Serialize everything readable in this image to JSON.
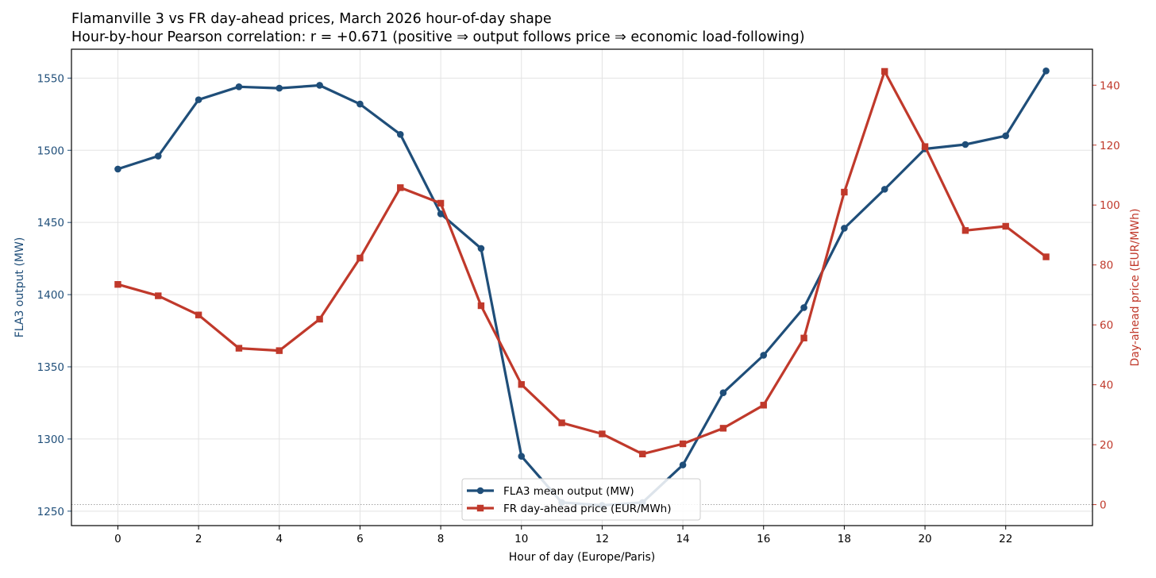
{
  "chart_data": {
    "type": "line",
    "title": "Flamanville 3 vs FR day-ahead prices, March 2026 hour-of-day shape",
    "subtitle": "Hour-by-hour Pearson correlation: r = +0.671  (positive ⇒ output follows price ⇒ economic load-following)",
    "xlabel": "Hour of day (Europe/Paris)",
    "x": [
      0,
      1,
      2,
      3,
      4,
      5,
      6,
      7,
      8,
      9,
      10,
      11,
      12,
      13,
      14,
      15,
      16,
      17,
      18,
      19,
      20,
      21,
      22,
      23
    ],
    "xlim": [
      -1.15,
      24.15
    ],
    "xticks": [
      0,
      2,
      4,
      6,
      8,
      10,
      12,
      14,
      16,
      18,
      20,
      22
    ],
    "grid": true,
    "legend_position": "lower center",
    "left_axis": {
      "label": "FLA3 output (MW)",
      "ylim": [
        1240,
        1570
      ],
      "ticks": [
        1250,
        1300,
        1350,
        1400,
        1450,
        1500,
        1550
      ],
      "color": "#1f4e79"
    },
    "right_axis": {
      "label": "Day-ahead price (EUR/MWh)",
      "ylim": [
        -7,
        152
      ],
      "ticks": [
        0,
        20,
        40,
        60,
        80,
        100,
        120,
        140
      ],
      "color": "#c0392b",
      "reference_line": 0
    },
    "series": [
      {
        "name": "FLA3 mean output (MW)",
        "axis": "left",
        "marker": "circle",
        "color": "#1f4e79",
        "values": [
          1487,
          1496,
          1535,
          1544,
          1543,
          1545,
          1532,
          1511,
          1456,
          1432,
          1288,
          1256,
          1254,
          1256,
          1282,
          1332,
          1358,
          1391,
          1446,
          1473,
          1501,
          1504,
          1510,
          1555
        ]
      },
      {
        "name": "FR day-ahead price (EUR/MWh)",
        "axis": "right",
        "marker": "square",
        "color": "#c0392b",
        "values": [
          73.5,
          69.7,
          63.3,
          52.2,
          51.4,
          61.9,
          82.3,
          105.8,
          100.6,
          66.4,
          40.1,
          27.3,
          23.6,
          16.9,
          20.3,
          25.5,
          33.2,
          55.6,
          104.3,
          144.6,
          119.5,
          91.5,
          92.9,
          82.7
        ]
      }
    ]
  }
}
